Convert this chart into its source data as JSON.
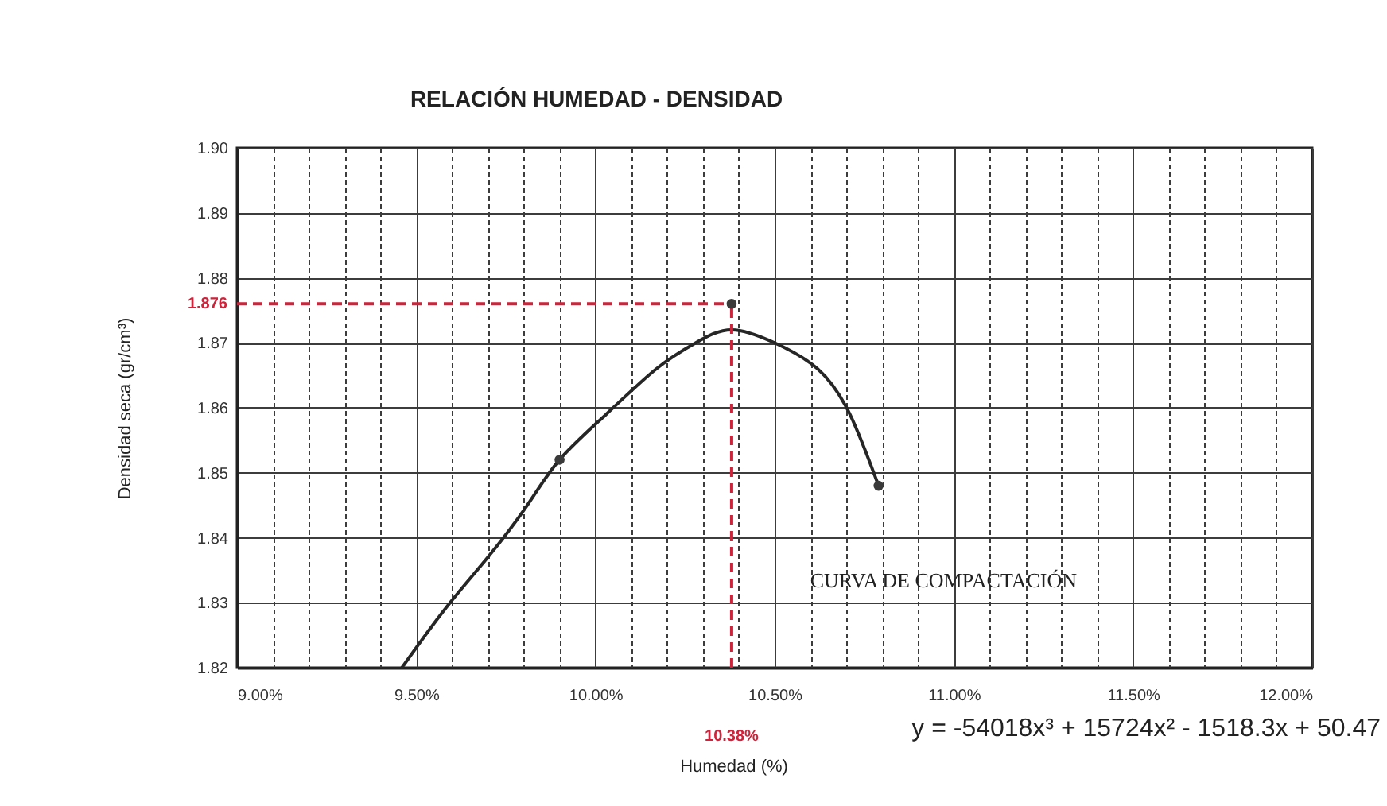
{
  "chart_data": {
    "type": "line",
    "title": "RELACIÓN HUMEDAD - DENSIDAD",
    "xlabel": "Humedad (%)",
    "ylabel": "Densidad seca (gr/cm³)",
    "series": [
      {
        "name": "CURVA DE COMPACTACIÓN",
        "color": "#262626",
        "x": [
          9.46,
          9.58,
          9.7,
          9.81,
          9.9,
          10.03,
          10.17,
          10.28,
          10.38,
          10.5,
          10.62,
          10.71,
          10.79
        ],
        "values": [
          1.82,
          1.829,
          1.837,
          1.845,
          1.852,
          1.859,
          1.866,
          1.87,
          1.872,
          1.87,
          1.866,
          1.859,
          1.848
        ]
      },
      {
        "type": "scatter",
        "color": "#3a3a3a",
        "marker": "circle",
        "x": [
          9.9,
          10.38,
          10.79
        ],
        "values": [
          1.852,
          1.876,
          1.848
        ]
      }
    ],
    "xlim": [
      9,
      12
    ],
    "xticks": [
      {
        "value": 9,
        "label": "9.00%"
      },
      {
        "value": 9.1,
        "label": null
      },
      {
        "value": 9.2,
        "label": null
      },
      {
        "value": 9.3,
        "label": null
      },
      {
        "value": 9.4,
        "label": null
      },
      {
        "value": 9.5,
        "label": "9.50%"
      },
      {
        "value": 9.6,
        "label": null
      },
      {
        "value": 9.7,
        "label": null
      },
      {
        "value": 9.8,
        "label": null
      },
      {
        "value": 9.9,
        "label": null
      },
      {
        "value": 10,
        "label": "10.00%"
      },
      {
        "value": 10.1,
        "label": null
      },
      {
        "value": 10.2,
        "label": null
      },
      {
        "value": 10.3,
        "label": null
      },
      {
        "value": 10.4,
        "label": null
      },
      {
        "value": 10.5,
        "label": "10.50%"
      },
      {
        "value": 10.6,
        "label": null
      },
      {
        "value": 10.7,
        "label": null
      },
      {
        "value": 10.8,
        "label": null
      },
      {
        "value": 10.9,
        "label": null
      },
      {
        "value": 11,
        "label": "11.00%"
      },
      {
        "value": 11.1,
        "label": null
      },
      {
        "value": 11.2,
        "label": null
      },
      {
        "value": 11.3,
        "label": null
      },
      {
        "value": 11.4,
        "label": null
      },
      {
        "value": 11.5,
        "label": "11.50%"
      },
      {
        "value": 11.6,
        "label": null
      },
      {
        "value": 11.7,
        "label": null
      },
      {
        "value": 11.8,
        "label": null
      },
      {
        "value": 11.9,
        "label": null
      },
      {
        "value": 12,
        "label": "12.00%"
      }
    ],
    "ylim": [
      1.82,
      1.9
    ],
    "yticks": [
      1.82,
      1.83,
      1.84,
      1.85,
      1.86,
      1.87,
      1.88,
      1.89,
      {
        "value": 1.9,
        "label": "1.90"
      }
    ],
    "grid": true,
    "ref_lines": [
      {
        "axis": "x",
        "value": 10.38,
        "label": "10.38%",
        "color": "#d0223a",
        "line_style": "dashed"
      },
      {
        "axis": "y",
        "value": 1.876,
        "label": "1.876",
        "color": "#d0223a",
        "line_style": "dashed"
      }
    ],
    "annotations": [
      "y = -54018x³ + 15724x² - 1518.3x + 50.47"
    ]
  }
}
